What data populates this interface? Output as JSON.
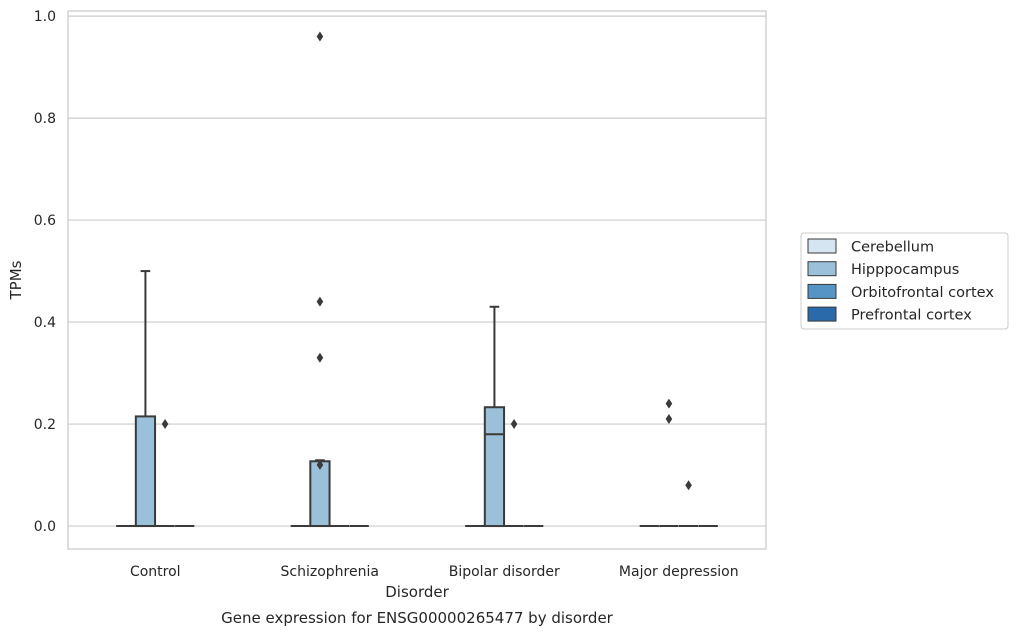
{
  "chart_data": {
    "type": "box",
    "title": "",
    "caption": "Gene expression for ENSG00000265477 by disorder",
    "xlabel": "Disorder",
    "ylabel": "TPMs",
    "ylim": [
      -0.045,
      1.01
    ],
    "yticks": [
      "0.0",
      "0.2",
      "0.4",
      "0.6",
      "0.8",
      "1.0"
    ],
    "grid": "horizontal",
    "legend_position": "right",
    "categories": [
      "Control",
      "Schizophrenia",
      "Bipolar disorder",
      "Major depression"
    ],
    "series": [
      {
        "name": "Cerebellum",
        "color": "#d6e5f2",
        "boxes": [
          {
            "q1": 0,
            "median": 0,
            "q3": 0,
            "whisker_low": 0,
            "whisker_high": 0,
            "outliers": []
          },
          {
            "q1": 0,
            "median": 0,
            "q3": 0,
            "whisker_low": 0,
            "whisker_high": 0,
            "outliers": []
          },
          {
            "q1": 0,
            "median": 0,
            "q3": 0,
            "whisker_low": 0,
            "whisker_high": 0,
            "outliers": []
          },
          {
            "q1": 0,
            "median": 0,
            "q3": 0,
            "whisker_low": 0,
            "whisker_high": 0,
            "outliers": []
          }
        ]
      },
      {
        "name": "Hipppocampus",
        "color": "#9ac1d9",
        "boxes": [
          {
            "q1": 0,
            "median": 0,
            "q3": 0.215,
            "whisker_low": 0,
            "whisker_high": 0.5,
            "outliers": []
          },
          {
            "q1": 0,
            "median": 0,
            "q3": 0.127,
            "whisker_low": 0,
            "whisker_high": 0.129,
            "outliers": [
              0.96,
              0.44,
              0.33,
              0.12
            ]
          },
          {
            "q1": 0,
            "median": 0.18,
            "q3": 0.233,
            "whisker_low": 0,
            "whisker_high": 0.43,
            "outliers": []
          },
          {
            "q1": 0,
            "median": 0,
            "q3": 0,
            "whisker_low": 0,
            "whisker_high": 0,
            "outliers": [
              0.24,
              0.21
            ]
          }
        ]
      },
      {
        "name": "Orbitofrontal cortex",
        "color": "#5594c4",
        "boxes": [
          {
            "q1": 0,
            "median": 0,
            "q3": 0,
            "whisker_low": 0,
            "whisker_high": 0,
            "outliers": [
              0.2
            ]
          },
          {
            "q1": 0,
            "median": 0,
            "q3": 0,
            "whisker_low": 0,
            "whisker_high": 0,
            "outliers": []
          },
          {
            "q1": 0,
            "median": 0,
            "q3": 0,
            "whisker_low": 0,
            "whisker_high": 0,
            "outliers": [
              0.2
            ]
          },
          {
            "q1": 0,
            "median": 0,
            "q3": 0,
            "whisker_low": 0,
            "whisker_high": 0,
            "outliers": [
              0.08
            ]
          }
        ]
      },
      {
        "name": "Prefrontal cortex",
        "color": "#2a6aaa",
        "boxes": [
          {
            "q1": 0,
            "median": 0,
            "q3": 0,
            "whisker_low": 0,
            "whisker_high": 0,
            "outliers": []
          },
          {
            "q1": 0,
            "median": 0,
            "q3": 0,
            "whisker_low": 0,
            "whisker_high": 0,
            "outliers": []
          },
          {
            "q1": 0,
            "median": 0,
            "q3": 0,
            "whisker_low": 0,
            "whisker_high": 0,
            "outliers": []
          },
          {
            "q1": 0,
            "median": 0,
            "q3": 0,
            "whisker_low": 0,
            "whisker_high": 0,
            "outliers": []
          }
        ]
      }
    ]
  }
}
